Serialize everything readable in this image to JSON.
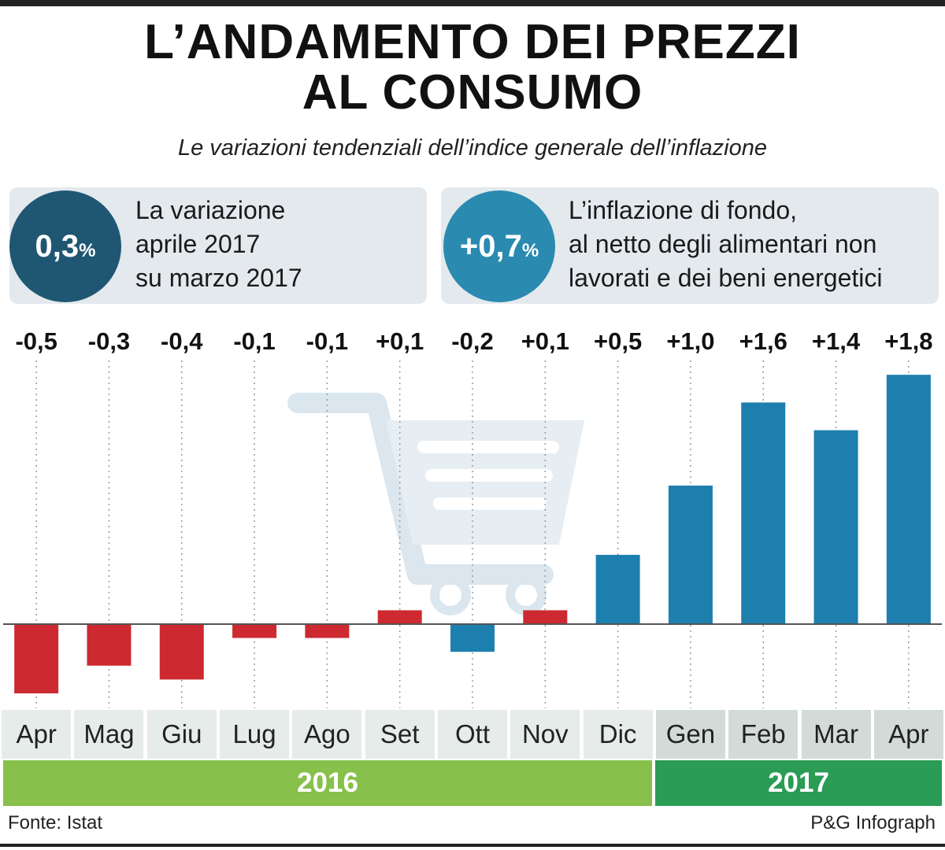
{
  "header": {
    "title_line1": "L’ANDAMENTO DEI PREZZI",
    "title_line2": "AL CONSUMO",
    "subtitle": "Le variazioni tendenziali dell’indice generale dell’inflazione"
  },
  "callouts": [
    {
      "value": "0,3",
      "unit": "%",
      "lines": [
        "La variazione",
        "aprile 2017",
        "su marzo 2017"
      ],
      "color": "#1f5773"
    },
    {
      "value": "+0,7",
      "unit": "%",
      "lines": [
        "L’inflazione di fondo,",
        "al netto degli alimentari non",
        "lavorati e dei beni energetici"
      ],
      "color": "#2a8ab0"
    }
  ],
  "chart_data": {
    "type": "bar",
    "title": "L’ANDAMENTO DEI PREZZI AL CONSUMO",
    "subtitle": "Le variazioni tendenziali dell’indice generale dell’inflazione",
    "categories": [
      "Apr",
      "Mag",
      "Giu",
      "Lug",
      "Ago",
      "Set",
      "Ott",
      "Nov",
      "Dic",
      "Gen",
      "Feb",
      "Mar",
      "Apr"
    ],
    "values": [
      -0.5,
      -0.3,
      -0.4,
      -0.1,
      -0.1,
      0.1,
      -0.2,
      0.1,
      0.5,
      1.0,
      1.6,
      1.4,
      1.8
    ],
    "value_labels": [
      "-0,5",
      "-0,3",
      "-0,4",
      "-0,1",
      "-0,1",
      "+0,1",
      "-0,2",
      "+0,1",
      "+0,5",
      "+1,0",
      "+1,6",
      "+1,4",
      "+1,8"
    ],
    "bar_colors": [
      "#cc2a30",
      "#cc2a30",
      "#cc2a30",
      "#cc2a30",
      "#cc2a30",
      "#cc2a30",
      "#1d7fae",
      "#cc2a30",
      "#1d7fae",
      "#1d7fae",
      "#1d7fae",
      "#1d7fae",
      "#1d7fae"
    ],
    "years": [
      {
        "label": "2016",
        "from_index": 0,
        "to_index": 8,
        "color": "#87c04a"
      },
      {
        "label": "2017",
        "from_index": 9,
        "to_index": 12,
        "color": "#2a9c55"
      }
    ],
    "ylim": [
      -0.6,
      2.0
    ],
    "grid": "dotted vertical",
    "legend": "none"
  },
  "footer": {
    "source": "Fonte: Istat",
    "credit": "P&G Infograph"
  }
}
